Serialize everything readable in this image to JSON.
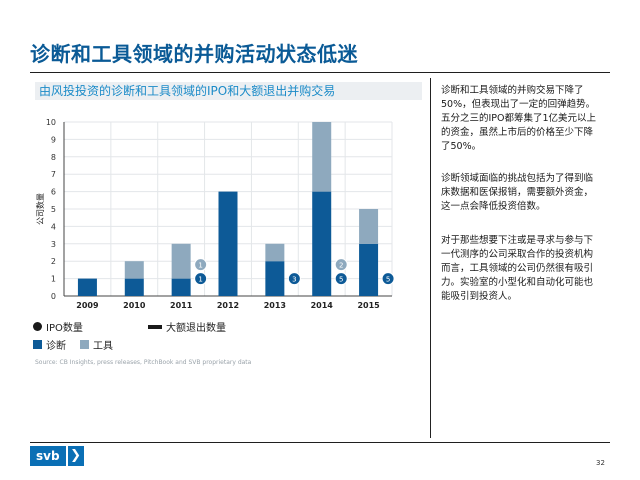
{
  "slide": {
    "title": "诊断和工具领域的并购活动状态低迷",
    "page_number": "32",
    "logo_text": "svb",
    "logo_chevron": "❯",
    "source": "Source: CB Insights, press releases, PitchBook and SVB proprietary data"
  },
  "side_paragraphs": [
    "诊断和工具领域的并购交易下降了50%，但表现出了一定的回弹趋势。五分之三的IPO都筹集了1亿美元以上的资金，虽然上市后的价格至少下降了50%。",
    "诊断领域面临的挑战包括为了得到临床数据和医保报销，需要额外资金，这一点会降低投资倍数。",
    "对于那些想要下注或是寻求与参与下一代测序的公司采取合作的投资机构而言，工具领域的公司仍然很有吸引力。实验室的小型化和自动化可能也能吸引到投资人。"
  ],
  "legend": {
    "ipo": "IPO数量",
    "large_exit": "大额退出数量",
    "diagnostics": "诊断",
    "tools": "工具"
  },
  "colors": {
    "diagnostics": "#0d5a97",
    "tools": "#8ea9be",
    "title": "#0a5a96",
    "chart_title": "#1b8bc8",
    "dark": "#1a1a1a"
  },
  "chart_data": {
    "type": "bar",
    "stacked": true,
    "title": "由风投投资的诊断和工具领域的IPO和大额退出并购交易",
    "ylabel": "公司数量",
    "xlabel": "",
    "ylim": [
      0,
      10
    ],
    "yticks": [
      0,
      1,
      2,
      3,
      4,
      5,
      6,
      7,
      8,
      9,
      10
    ],
    "categories": [
      "2009",
      "2010",
      "2011",
      "2012",
      "2013",
      "2014",
      "2015"
    ],
    "series": [
      {
        "name": "诊断",
        "values": [
          1,
          1,
          1,
          6,
          2,
          6,
          3
        ]
      },
      {
        "name": "工具",
        "values": [
          0,
          1,
          2,
          0,
          1,
          4,
          2
        ]
      }
    ],
    "ipo_markers": [
      {
        "year": "2011",
        "count": 1,
        "tools_count": 1
      },
      {
        "year": "2013",
        "count": 3,
        "tools_count": 0
      },
      {
        "year": "2014",
        "count": 5,
        "tools_count": 2
      },
      {
        "year": "2015",
        "count": 5,
        "tools_count": 0
      }
    ]
  }
}
